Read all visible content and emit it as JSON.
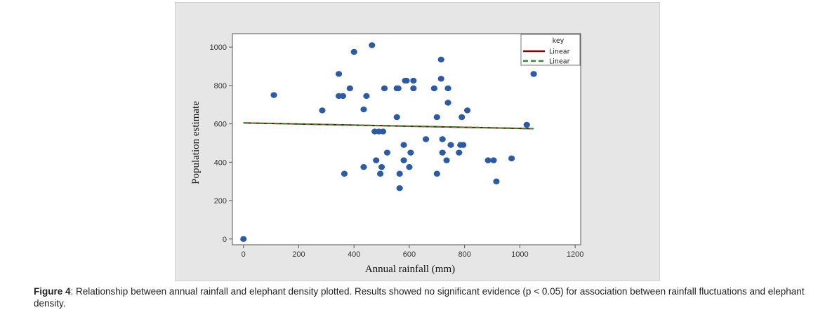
{
  "chart_data": {
    "type": "scatter",
    "xlabel": "Annual rainfall (mm)",
    "ylabel": "Population estimate",
    "xlim": [
      -40,
      1220
    ],
    "ylim": [
      -30,
      1070
    ],
    "xticks": [
      0,
      200,
      400,
      600,
      800,
      1000,
      1200
    ],
    "yticks": [
      0,
      200,
      400,
      600,
      800,
      1000
    ],
    "grid": false,
    "legend_position": "top-right",
    "legend": {
      "title": "key",
      "entries": [
        {
          "label": "Linear",
          "color": "#8b0000",
          "style": "solid"
        },
        {
          "label": "Linear",
          "color": "#2e8b2e",
          "style": "dashed"
        }
      ]
    },
    "marker_color": "#2b5aa6",
    "series": [
      {
        "x": [
          0,
          110,
          285,
          345,
          345,
          360,
          365,
          385,
          400,
          435,
          435,
          445,
          465,
          475,
          480,
          490,
          495,
          500,
          505,
          510,
          520,
          555,
          555,
          560,
          565,
          565,
          580,
          580,
          585,
          590,
          600,
          605,
          615,
          615,
          660,
          690,
          700,
          700,
          715,
          715,
          720,
          720,
          735,
          740,
          740,
          750,
          780,
          785,
          790,
          795,
          810,
          885,
          905,
          915,
          970,
          1025,
          1050
        ],
        "y": [
          0,
          750,
          670,
          860,
          745,
          745,
          340,
          785,
          975,
          375,
          675,
          745,
          1010,
          560,
          410,
          560,
          340,
          375,
          560,
          785,
          450,
          635,
          785,
          785,
          265,
          340,
          490,
          410,
          825,
          825,
          375,
          450,
          825,
          785,
          520,
          785,
          340,
          635,
          835,
          935,
          450,
          520,
          410,
          785,
          710,
          490,
          450,
          490,
          635,
          490,
          670,
          410,
          410,
          300,
          420,
          595,
          860
        ]
      }
    ],
    "fit_lines": [
      {
        "x": [
          0,
          1050
        ],
        "y": [
          605,
          575
        ],
        "color": "#8b0000",
        "style": "solid"
      },
      {
        "x": [
          0,
          1050
        ],
        "y": [
          605,
          575
        ],
        "color": "#2e8b2e",
        "style": "dashed"
      }
    ]
  },
  "caption": {
    "label": "Figure 4",
    "text": ": Relationship between annual rainfall and elephant density plotted. Results showed no significant evidence (p < 0.05) for association between rainfall fluctuations and elephant density."
  }
}
